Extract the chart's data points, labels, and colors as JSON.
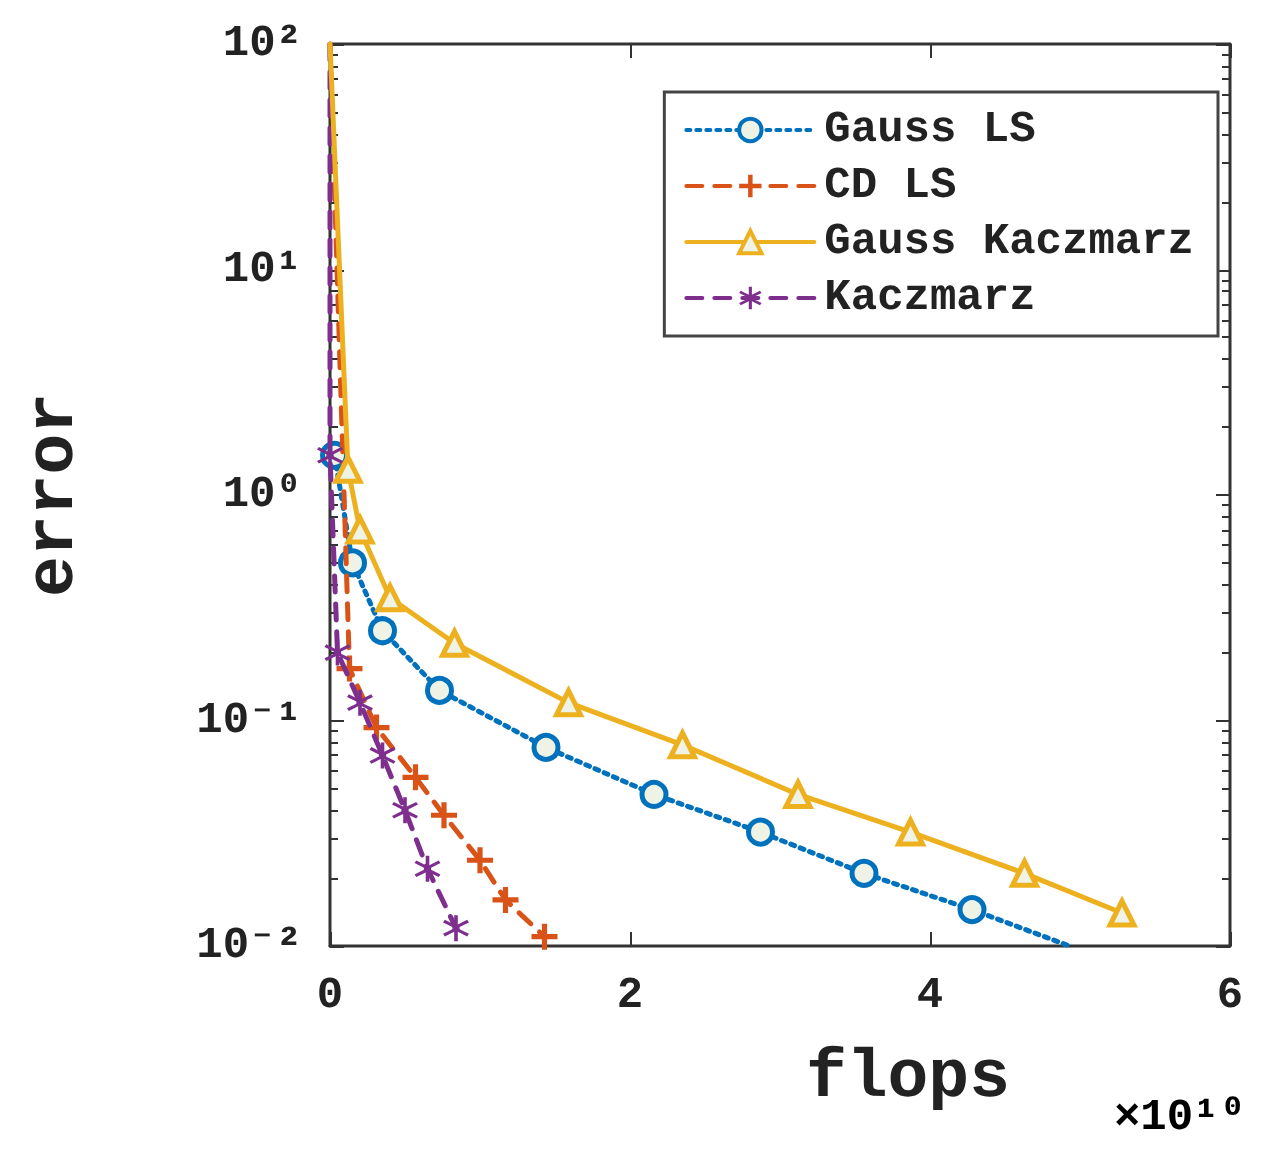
{
  "chart_data": {
    "type": "line",
    "xlabel": "flops",
    "ylabel": "error",
    "annotations": [
      "×10¹⁰"
    ],
    "log": "y",
    "xlim": [
      0,
      6
    ],
    "xticks": [
      0,
      2,
      4,
      6
    ],
    "ylim": [
      0.01,
      100
    ],
    "yticks": [
      {
        "value": 0.01,
        "label": "10⁻²"
      },
      {
        "value": 0.1,
        "label": "10⁻¹"
      },
      {
        "value": 1,
        "label": "10⁰"
      },
      {
        "value": 10,
        "label": "10¹"
      },
      {
        "value": 100,
        "label": "10²"
      }
    ],
    "grid": false,
    "legend": "top right",
    "series": [
      {
        "name": "Gauss LS",
        "color": "#0072bd",
        "line_style": "dotted",
        "marker": "circle",
        "x": [
          0.03,
          0.15,
          0.35,
          0.73,
          1.44,
          2.16,
          2.87,
          3.56,
          4.28,
          4.93
        ],
        "values": [
          1.5,
          0.5,
          0.25,
          0.136,
          0.076,
          0.047,
          0.032,
          0.021,
          0.0145,
          0.01
        ]
      },
      {
        "name": "CD LS",
        "color": "#d95319",
        "line_style": "dashed",
        "marker": "cross",
        "x": [
          0,
          0.13,
          0.31,
          0.57,
          0.76,
          1.0,
          1.17,
          1.43
        ],
        "values": [
          100,
          0.17,
          0.093,
          0.056,
          0.038,
          0.024,
          0.016,
          0.011
        ]
      },
      {
        "name": "Gauss Kaczmarz",
        "color": "#edb120",
        "line_style": "solid",
        "marker": "triangle",
        "x": [
          0,
          0.12,
          0.2,
          0.4,
          0.83,
          1.59,
          2.35,
          3.12,
          3.87,
          4.63,
          5.28
        ],
        "values": [
          100,
          1.3,
          0.7,
          0.35,
          0.22,
          0.12,
          0.078,
          0.047,
          0.032,
          0.021,
          0.014
        ]
      },
      {
        "name": "Kaczmarz",
        "color": "#7e2f8e",
        "line_style": "dashed",
        "marker": "star",
        "x": [
          0,
          0,
          0.05,
          0.2,
          0.35,
          0.5,
          0.65,
          0.84
        ],
        "values": [
          100,
          1.5,
          0.2,
          0.12,
          0.07,
          0.04,
          0.022,
          0.012
        ]
      }
    ]
  }
}
